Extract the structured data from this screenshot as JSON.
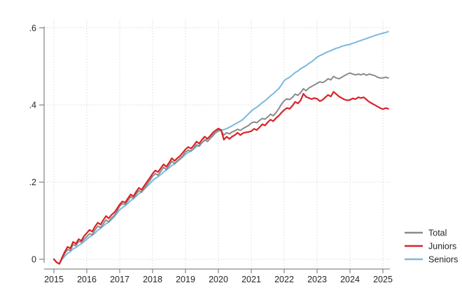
{
  "page": {
    "background": "#ffffff"
  },
  "chart_data": {
    "type": "line",
    "title": "",
    "xlabel": "",
    "ylabel": "",
    "x_axis": {
      "tick_labels": [
        "2015",
        "2016",
        "2017",
        "2018",
        "2019",
        "2020",
        "2021",
        "2022",
        "2023",
        "2024",
        "2025"
      ],
      "tick_years": [
        2015,
        2016,
        2017,
        2018,
        2019,
        2020,
        2021,
        2022,
        2023,
        2024,
        2025
      ],
      "start_year": 2015,
      "points_per_year": 12,
      "range": [
        2015,
        2025.4
      ]
    },
    "y_axis": {
      "tick_labels": [
        "0",
        ".2",
        ".4",
        ".6"
      ],
      "tick_values": [
        0,
        0.2,
        0.4,
        0.6
      ],
      "range": [
        -0.03,
        0.62
      ]
    },
    "grid": {
      "horizontal": true,
      "vertical": true,
      "style": "dotted",
      "color": "#d9d9d9",
      "legend_position": "bottom-right"
    },
    "legend": {
      "entries": [
        {
          "label": "Total",
          "color": "#8a8a8a"
        },
        {
          "label": "Juniors",
          "color": "#db2127"
        },
        {
          "label": "Seniors",
          "color": "#7ab8e0"
        }
      ]
    },
    "series": [
      {
        "name": "Total",
        "color": "#8a8a8a",
        "stroke_width": 2,
        "values": [
          0.0,
          -0.008,
          -0.012,
          0.002,
          0.015,
          0.025,
          0.023,
          0.038,
          0.035,
          0.046,
          0.044,
          0.052,
          0.059,
          0.066,
          0.064,
          0.076,
          0.086,
          0.082,
          0.092,
          0.102,
          0.097,
          0.107,
          0.113,
          0.124,
          0.138,
          0.144,
          0.142,
          0.152,
          0.162,
          0.158,
          0.169,
          0.178,
          0.174,
          0.184,
          0.194,
          0.204,
          0.215,
          0.222,
          0.218,
          0.228,
          0.238,
          0.233,
          0.243,
          0.254,
          0.248,
          0.255,
          0.261,
          0.268,
          0.278,
          0.283,
          0.28,
          0.288,
          0.297,
          0.293,
          0.302,
          0.31,
          0.305,
          0.313,
          0.32,
          0.328,
          0.335,
          0.333,
          0.322,
          0.328,
          0.325,
          0.33,
          0.333,
          0.337,
          0.334,
          0.339,
          0.343,
          0.347,
          0.353,
          0.356,
          0.354,
          0.36,
          0.365,
          0.363,
          0.369,
          0.376,
          0.372,
          0.38,
          0.39,
          0.402,
          0.411,
          0.416,
          0.414,
          0.42,
          0.428,
          0.425,
          0.432,
          0.442,
          0.437,
          0.444,
          0.448,
          0.452,
          0.456,
          0.46,
          0.458,
          0.462,
          0.468,
          0.465,
          0.474,
          0.47,
          0.468,
          0.472,
          0.476,
          0.48,
          0.483,
          0.48,
          0.478,
          0.48,
          0.478,
          0.481,
          0.477,
          0.48,
          0.478,
          0.476,
          0.472,
          0.47,
          0.47,
          0.472,
          0.47
        ]
      },
      {
        "name": "Juniors",
        "color": "#db2127",
        "stroke_width": 2.2,
        "values": [
          0.0,
          -0.008,
          -0.012,
          0.005,
          0.02,
          0.032,
          0.028,
          0.045,
          0.04,
          0.052,
          0.048,
          0.06,
          0.068,
          0.076,
          0.072,
          0.085,
          0.095,
          0.09,
          0.101,
          0.112,
          0.106,
          0.115,
          0.121,
          0.131,
          0.142,
          0.15,
          0.147,
          0.158,
          0.168,
          0.163,
          0.175,
          0.185,
          0.18,
          0.191,
          0.201,
          0.211,
          0.222,
          0.23,
          0.226,
          0.236,
          0.246,
          0.24,
          0.25,
          0.262,
          0.255,
          0.262,
          0.268,
          0.276,
          0.285,
          0.291,
          0.287,
          0.295,
          0.305,
          0.3,
          0.31,
          0.318,
          0.312,
          0.32,
          0.328,
          0.334,
          0.339,
          0.335,
          0.31,
          0.318,
          0.312,
          0.318,
          0.322,
          0.328,
          0.322,
          0.327,
          0.329,
          0.33,
          0.332,
          0.338,
          0.335,
          0.342,
          0.35,
          0.347,
          0.355,
          0.362,
          0.358,
          0.366,
          0.372,
          0.38,
          0.387,
          0.392,
          0.39,
          0.398,
          0.408,
          0.404,
          0.412,
          0.429,
          0.421,
          0.418,
          0.415,
          0.418,
          0.416,
          0.41,
          0.413,
          0.42,
          0.426,
          0.422,
          0.434,
          0.428,
          0.422,
          0.418,
          0.414,
          0.412,
          0.413,
          0.417,
          0.415,
          0.42,
          0.418,
          0.42,
          0.414,
          0.408,
          0.404,
          0.4,
          0.396,
          0.392,
          0.389,
          0.392,
          0.39
        ]
      },
      {
        "name": "Seniors",
        "color": "#7ab8e0",
        "stroke_width": 2,
        "values": [
          0.0,
          -0.008,
          -0.012,
          0.0,
          0.008,
          0.015,
          0.02,
          0.027,
          0.03,
          0.036,
          0.04,
          0.046,
          0.052,
          0.058,
          0.062,
          0.068,
          0.075,
          0.08,
          0.086,
          0.092,
          0.096,
          0.103,
          0.11,
          0.119,
          0.128,
          0.134,
          0.139,
          0.145,
          0.152,
          0.157,
          0.163,
          0.17,
          0.175,
          0.182,
          0.189,
          0.196,
          0.204,
          0.21,
          0.214,
          0.22,
          0.226,
          0.231,
          0.237,
          0.243,
          0.247,
          0.253,
          0.259,
          0.265,
          0.272,
          0.277,
          0.281,
          0.286,
          0.292,
          0.296,
          0.302,
          0.308,
          0.312,
          0.318,
          0.324,
          0.328,
          0.332,
          0.335,
          0.336,
          0.339,
          0.342,
          0.346,
          0.35,
          0.354,
          0.358,
          0.363,
          0.37,
          0.377,
          0.384,
          0.39,
          0.394,
          0.4,
          0.406,
          0.411,
          0.417,
          0.424,
          0.429,
          0.436,
          0.442,
          0.452,
          0.463,
          0.468,
          0.472,
          0.478,
          0.484,
          0.488,
          0.494,
          0.498,
          0.502,
          0.508,
          0.512,
          0.518,
          0.524,
          0.528,
          0.531,
          0.535,
          0.538,
          0.541,
          0.544,
          0.547,
          0.549,
          0.552,
          0.554,
          0.556,
          0.557,
          0.56,
          0.562,
          0.565,
          0.567,
          0.57,
          0.572,
          0.575,
          0.577,
          0.58,
          0.582,
          0.584,
          0.586,
          0.588,
          0.59
        ]
      }
    ],
    "draw_order": [
      "Seniors",
      "Total",
      "Juniors"
    ]
  },
  "layout_colors": {
    "axis": "#8c8c8c",
    "grid": "#d9d9d9",
    "text": "#262626"
  }
}
